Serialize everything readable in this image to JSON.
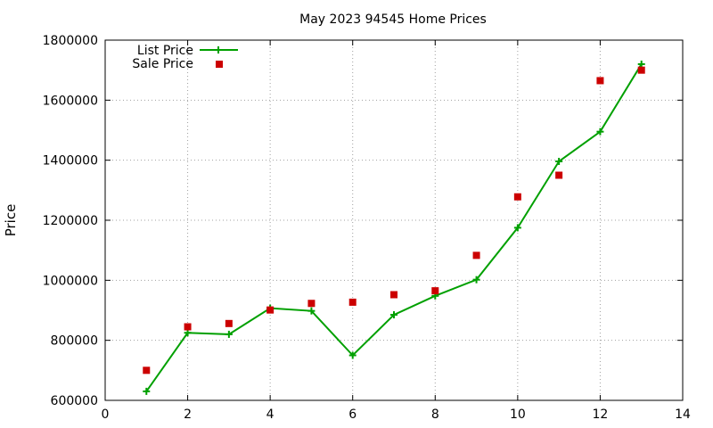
{
  "chart_data": {
    "type": "line",
    "title": "May 2023 94545 Home Prices",
    "xlabel": "",
    "ylabel": "Price",
    "xlim": [
      0,
      14
    ],
    "ylim": [
      600000,
      1800000
    ],
    "xticks": [
      0,
      2,
      4,
      6,
      8,
      10,
      12,
      14
    ],
    "yticks": [
      600000,
      800000,
      1000000,
      1200000,
      1400000,
      1600000,
      1800000
    ],
    "grid": true,
    "legend_position": "top-left",
    "series": [
      {
        "name": "List Price",
        "style": "line+cross-markers",
        "color": "#00a000",
        "points": [
          [
            1,
            630000
          ],
          [
            2,
            825000
          ],
          [
            3,
            820000
          ],
          [
            4,
            907000
          ],
          [
            5,
            898000
          ],
          [
            6,
            750000
          ],
          [
            7,
            885000
          ],
          [
            8,
            948000
          ],
          [
            9,
            1002000
          ],
          [
            10,
            1175000
          ],
          [
            11,
            1396000
          ],
          [
            12,
            1495000
          ],
          [
            13,
            1720000
          ]
        ]
      },
      {
        "name": "Sale Price",
        "style": "square-markers",
        "color": "#cc0000",
        "points": [
          [
            1,
            700000
          ],
          [
            2,
            845000
          ],
          [
            3,
            856000
          ],
          [
            4,
            901000
          ],
          [
            5,
            923000
          ],
          [
            6,
            927000
          ],
          [
            7,
            952000
          ],
          [
            8,
            965000
          ],
          [
            9,
            1083000
          ],
          [
            10,
            1278000
          ],
          [
            11,
            1350000
          ],
          [
            12,
            1665000
          ],
          [
            13,
            1700000
          ]
        ]
      }
    ]
  }
}
